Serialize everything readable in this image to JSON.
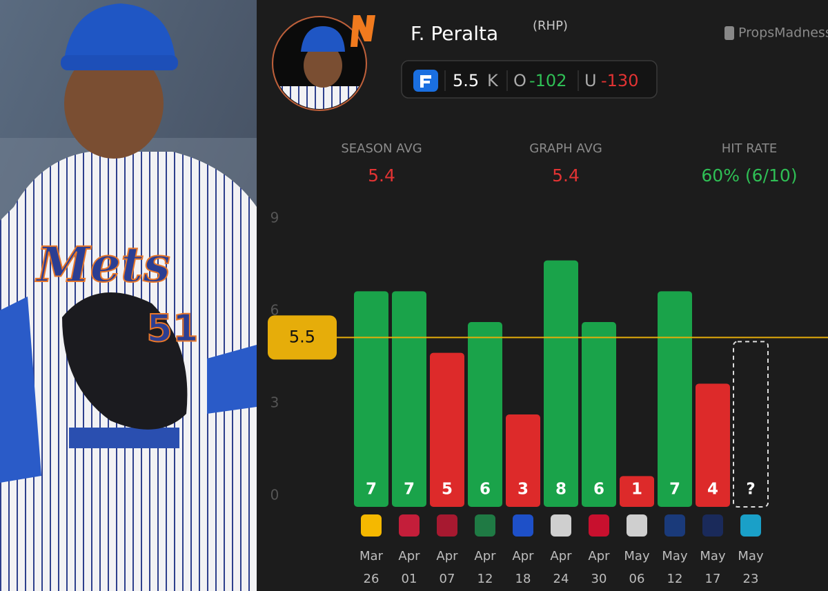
{
  "photo": {
    "jersey_text": "Mets",
    "jersey_number": "51"
  },
  "header": {
    "player": "F. Peralta",
    "hand": "(RHP)",
    "brand": "PropsMadness",
    "stat": "K",
    "over": "O",
    "over_odds": "-102",
    "under": "U",
    "under_odds": "-130"
  },
  "stats": [
    {
      "label": "SEASON AVG",
      "value": "5.4"
    },
    {
      "label": "GRAPH AVG",
      "value": "5.4"
    },
    {
      "label": "HIT RATE",
      "value": "60% (6/10)"
    }
  ],
  "chart_data": {
    "type": "bar",
    "categories": [
      "Mar 26",
      "Apr 01",
      "Apr 07",
      "Apr 12",
      "Apr 18",
      "Apr 24",
      "Apr 30",
      "May 06",
      "May 12",
      "May 17",
      "May 23"
    ],
    "values": [
      7,
      7,
      5,
      6,
      3,
      8,
      6,
      1,
      7,
      4,
      null
    ],
    "value_labels": [
      "7",
      "7",
      "5",
      "6",
      "3",
      "8",
      "6",
      "1",
      "7",
      "4",
      "?"
    ],
    "threshold": 5.5,
    "over_color": "#1aa34a",
    "under_color": "#dd2a2a",
    "threshold_color": "#e6ad0a",
    "ylim": [
      0,
      9
    ],
    "yticks": [
      0,
      3,
      6,
      9
    ]
  }
}
